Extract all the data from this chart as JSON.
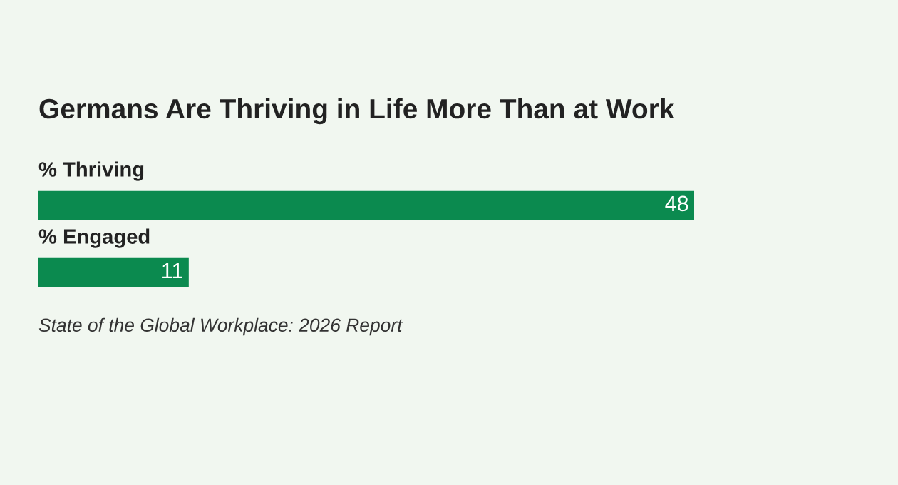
{
  "chart_data": {
    "type": "bar",
    "orientation": "horizontal",
    "title": "Germans Are Thriving in Life More Than at Work",
    "categories": [
      "% Thriving",
      "% Engaged"
    ],
    "values": [
      48,
      11
    ],
    "color": "#0b8a4f",
    "data_labels": true,
    "annotations": [
      "State of the Global Workplace: 2026 Report"
    ]
  }
}
